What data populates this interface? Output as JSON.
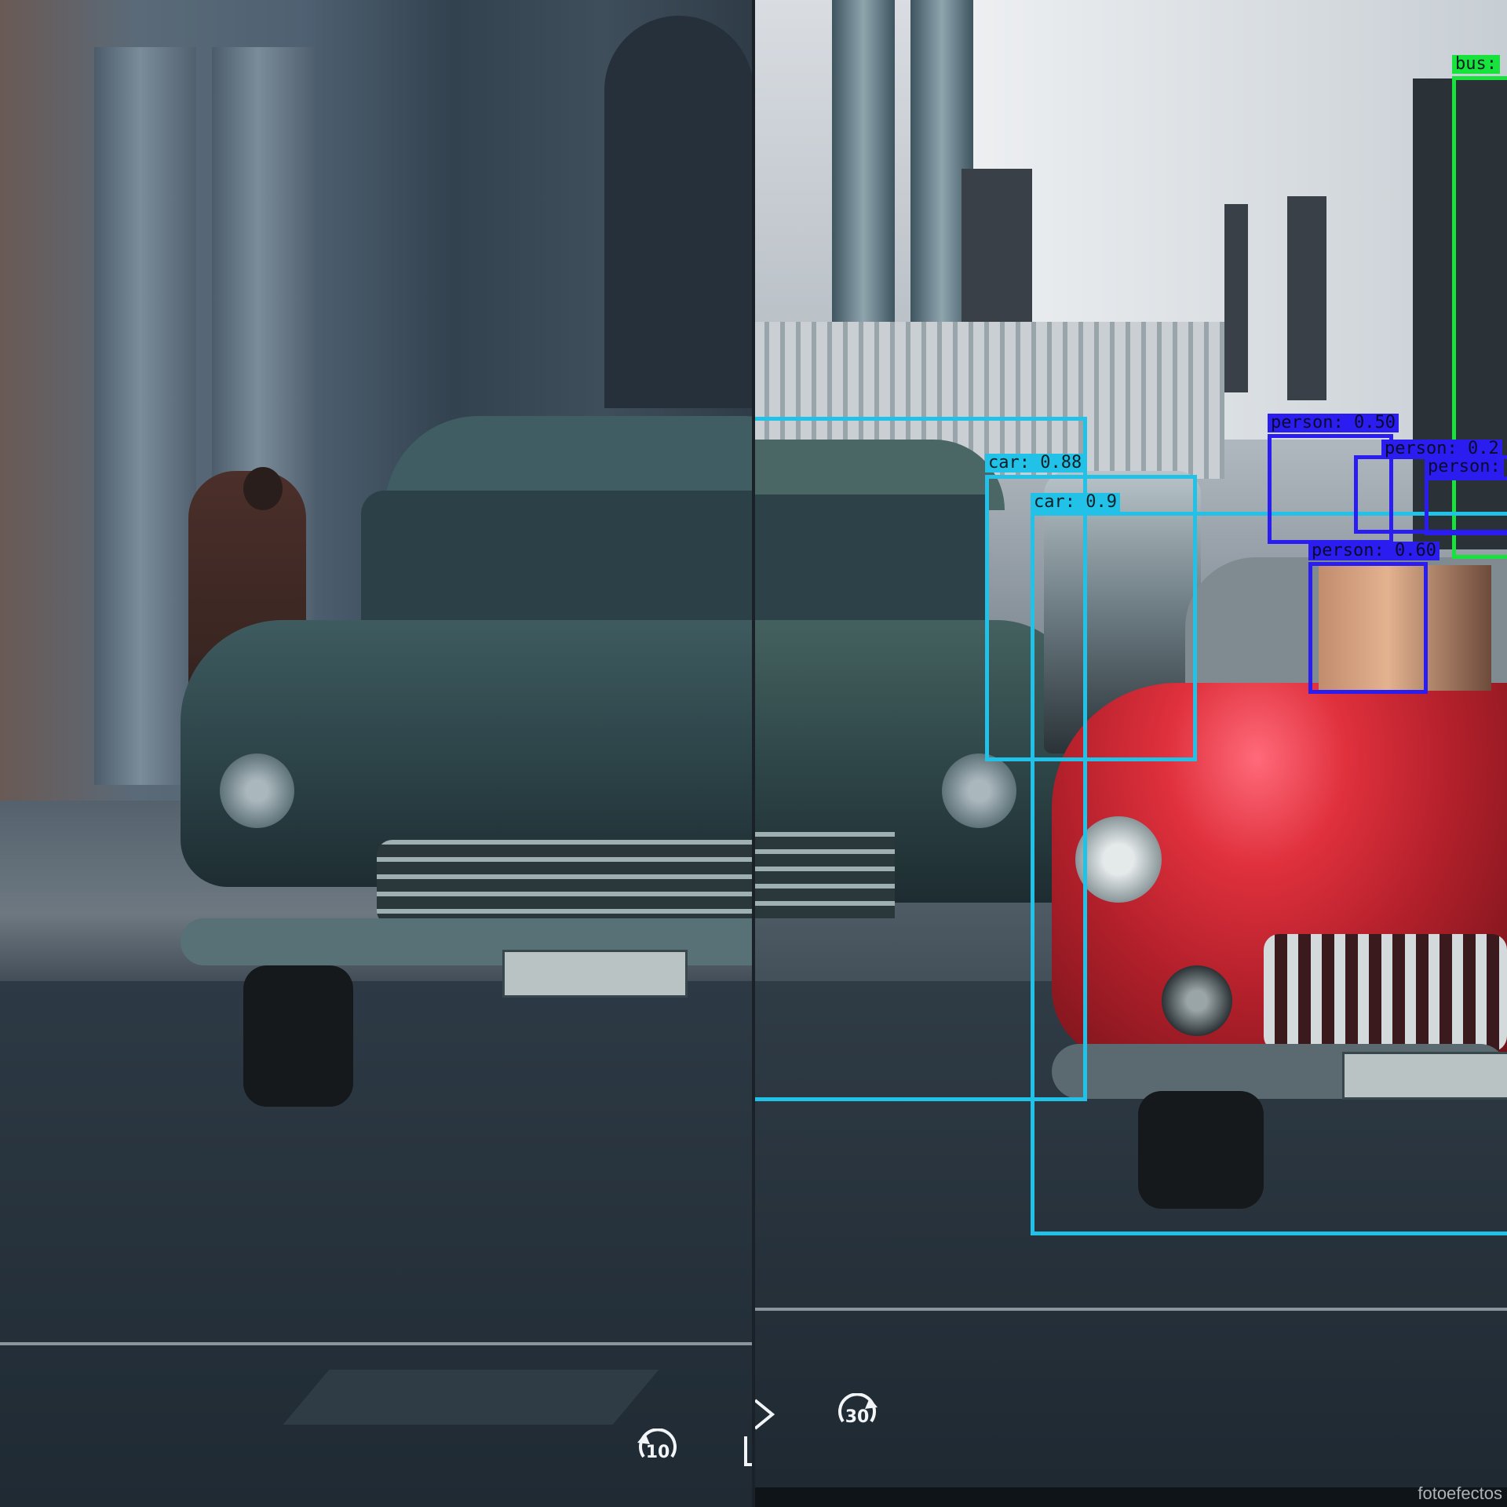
{
  "panes": {
    "left": {
      "description_label": ""
    },
    "right": {
      "description_label": ""
    }
  },
  "detections": [
    {
      "name": "bus",
      "label": "bus:",
      "color": "#18e23c"
    },
    {
      "name": "car-1",
      "label": "car: 0.88",
      "color": "#22c1e8"
    },
    {
      "name": "car-2",
      "label": "car: 0.9",
      "color": "#22c1e8"
    },
    {
      "name": "car-3",
      "label": "",
      "color": "#22c1e8"
    },
    {
      "name": "person-1",
      "label": "person: 0.50",
      "color": "#2b1df0"
    },
    {
      "name": "person-2",
      "label": "person: 0.2",
      "color": "#2b1df0"
    },
    {
      "name": "person-3",
      "label": "person:",
      "color": "#2b1df0"
    },
    {
      "name": "person-4",
      "label": "person: 0.60",
      "color": "#2b1df0"
    }
  ],
  "player": {
    "rewind_seconds": "10",
    "forward_seconds": "30",
    "play_icon": "play-icon"
  },
  "watermark": "fotoefectos"
}
